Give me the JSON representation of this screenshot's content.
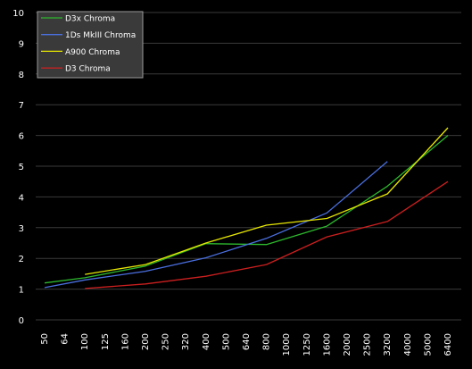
{
  "chart_data": {
    "type": "line",
    "categories": [
      "50",
      "64",
      "100",
      "125",
      "160",
      "200",
      "250",
      "320",
      "400",
      "500",
      "640",
      "800",
      "1000",
      "1250",
      "1600",
      "2000",
      "2500",
      "3200",
      "4000",
      "5000",
      "6400"
    ],
    "ylim": [
      0,
      10
    ],
    "yticks": [
      "0",
      "1",
      "2",
      "3",
      "4",
      "5",
      "6",
      "7",
      "8",
      "9",
      "10"
    ],
    "grid": true,
    "legend": "top-left",
    "background": "#000000",
    "plot_background": "#000000",
    "grid_color": "#3a3a3a",
    "text_color": "#ffffff",
    "series": [
      {
        "name": "D3x Chroma",
        "color": "#2db82d",
        "points": [
          [
            0,
            1.2
          ],
          [
            2,
            1.37
          ],
          [
            5,
            1.75
          ],
          [
            8,
            2.48
          ],
          [
            11,
            2.45
          ],
          [
            14,
            3.05
          ],
          [
            17,
            4.35
          ],
          [
            20,
            6.0
          ]
        ]
      },
      {
        "name": "1Ds MkIII Chroma",
        "color": "#4a6fe0",
        "points": [
          [
            0,
            1.05
          ],
          [
            2,
            1.3
          ],
          [
            5,
            1.58
          ],
          [
            8,
            2.02
          ],
          [
            11,
            2.65
          ],
          [
            14,
            3.48
          ],
          [
            17,
            5.15
          ]
        ]
      },
      {
        "name": "A900 Chroma",
        "color": "#e6e600",
        "points": [
          [
            2,
            1.48
          ],
          [
            5,
            1.8
          ],
          [
            8,
            2.5
          ],
          [
            11,
            3.08
          ],
          [
            14,
            3.3
          ],
          [
            17,
            4.1
          ],
          [
            20,
            6.25
          ]
        ]
      },
      {
        "name": "D3 Chroma",
        "color": "#cc1f1f",
        "points": [
          [
            2,
            1.02
          ],
          [
            5,
            1.17
          ],
          [
            8,
            1.42
          ],
          [
            11,
            1.8
          ],
          [
            14,
            2.7
          ],
          [
            17,
            3.2
          ],
          [
            20,
            4.5
          ]
        ]
      }
    ]
  }
}
